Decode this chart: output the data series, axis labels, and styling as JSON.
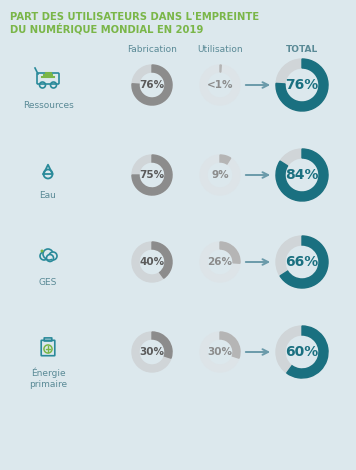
{
  "title_line1": "PART DES UTILISATEURS DANS L'EMPREINTE",
  "title_line2": "DU NUMÉRIQUE MONDIAL EN 2019",
  "title_color": "#7ab648",
  "background_color": "#dce8ed",
  "col_headers": [
    "Fabrication",
    "Utilisation",
    "TOTAL"
  ],
  "col_header_color": "#5a8a96",
  "rows": [
    {
      "label": "Ressources",
      "fab_val": 76,
      "fab_label": "76%",
      "util_val": 1,
      "util_label": "<1%",
      "total_val": 76,
      "total_label": "76%"
    },
    {
      "label": "Eau",
      "fab_val": 75,
      "fab_label": "75%",
      "util_val": 9,
      "util_label": "9%",
      "total_val": 84,
      "total_label": "84%"
    },
    {
      "label": "GES",
      "fab_val": 40,
      "fab_label": "40%",
      "util_val": 26,
      "util_label": "26%",
      "total_val": 66,
      "total_label": "66%"
    },
    {
      "label": "Énergie\nprimaire",
      "fab_val": 30,
      "fab_label": "30%",
      "util_val": 30,
      "util_label": "30%",
      "total_val": 60,
      "total_label": "60%"
    }
  ],
  "donut_filled_color_fab": "#8c8c8c",
  "donut_filled_color_util": "#b5b5b5",
  "donut_filled_color_total": "#1a7080",
  "donut_empty_color_fab": "#d0d5d8",
  "donut_empty_color_util": "#dde4e8",
  "donut_empty_color_total": "#d0d5d8",
  "donut_text_color_fab": "#5a5a5a",
  "donut_text_color_util": "#8c8c8c",
  "donut_text_color_total": "#1a7080",
  "arrow_color": "#6a9aaa",
  "label_color": "#5a8a96",
  "icon_teal": "#2a8a9a",
  "icon_green": "#7ab648",
  "icon_gray": "#8c8c8c"
}
